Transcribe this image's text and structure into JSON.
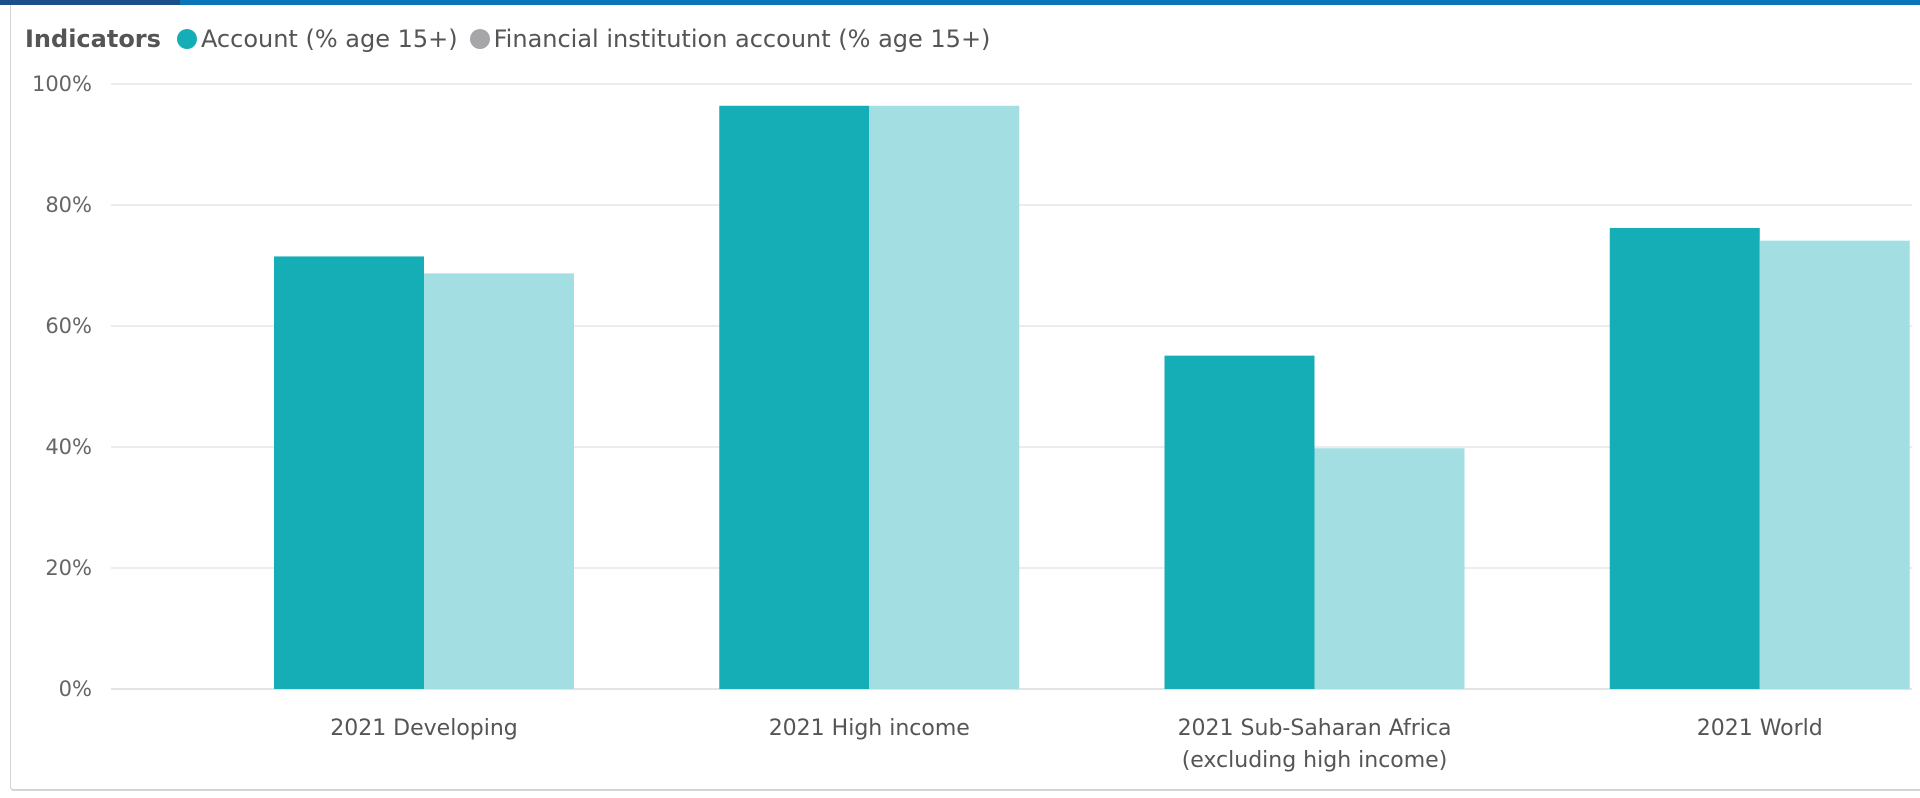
{
  "legend": {
    "title": "Indicators",
    "items": [
      {
        "label": "Account (% age 15+)",
        "color": "#16aeb6"
      },
      {
        "label": "Financial institution account (% age 15+)",
        "color": "#a6a6a8"
      }
    ]
  },
  "chart_data": {
    "type": "bar",
    "categories": [
      [
        "2021 Developing"
      ],
      [
        "2021 High income"
      ],
      [
        "2021 Sub-Saharan Africa",
        "(excluding high income)"
      ],
      [
        "2021 World"
      ]
    ],
    "series": [
      {
        "name": "Account (% age 15+)",
        "values": [
          71.5,
          96.4,
          55.1,
          76.2
        ],
        "color": "#16aeb6"
      },
      {
        "name": "Financial institution account (% age 15+)",
        "values": [
          68.7,
          96.4,
          39.8,
          74.1
        ],
        "color": "#a3dfe2"
      }
    ],
    "yticks": [
      "0%",
      "20%",
      "40%",
      "60%",
      "80%",
      "100%"
    ],
    "ylim": [
      0,
      100
    ],
    "grid": true,
    "legend_position": "top-left"
  }
}
